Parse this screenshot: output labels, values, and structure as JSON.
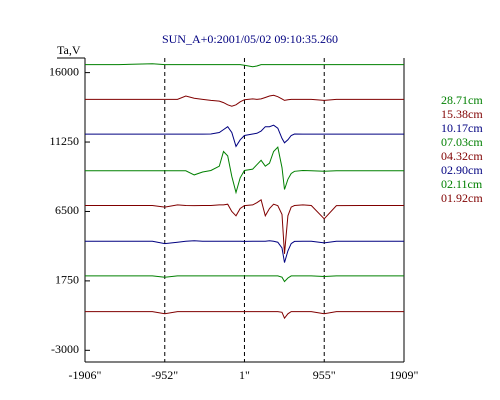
{
  "chart_data": {
    "type": "line",
    "title": "SUN_A+0:2001/05/02 09:10:35.260",
    "ylabel": "Ta,V",
    "x": [
      -1906,
      -1500,
      -1100,
      -952,
      -800,
      -700,
      -600,
      -500,
      -400,
      -300,
      -250,
      -200,
      -150,
      -100,
      -50,
      0,
      100,
      150,
      200,
      250,
      300,
      350,
      400,
      450,
      480,
      520,
      560,
      600,
      700,
      800,
      955,
      1100,
      1400,
      1909
    ],
    "series": [
      {
        "name": "28.71cm",
        "color": "#008000",
        "values": [
          16550,
          16550,
          16600,
          16550,
          16550,
          16550,
          16550,
          16550,
          16550,
          16550,
          16550,
          16550,
          16550,
          16550,
          16550,
          16500,
          16400,
          16450,
          16550,
          16550,
          16550,
          16550,
          16550,
          16550,
          16550,
          16550,
          16550,
          16550,
          16550,
          16550,
          16550,
          16550,
          16550,
          16550
        ]
      },
      {
        "name": "15.38cm",
        "color": "#800000",
        "values": [
          14170,
          14170,
          14170,
          14170,
          14170,
          14400,
          14250,
          14170,
          14100,
          14050,
          13950,
          13800,
          13700,
          13800,
          14000,
          14150,
          14200,
          14170,
          14200,
          14300,
          14400,
          14450,
          14350,
          14200,
          14100,
          14150,
          14170,
          14170,
          14170,
          14170,
          14100,
          14170,
          14170,
          14170
        ]
      },
      {
        "name": "10.17cm",
        "color": "#000080",
        "values": [
          11790,
          11790,
          11790,
          11790,
          11790,
          11790,
          11790,
          11790,
          11800,
          11900,
          12100,
          12300,
          11900,
          10950,
          11400,
          11700,
          11800,
          11850,
          12000,
          12300,
          12300,
          12400,
          12200,
          11500,
          11200,
          11400,
          11700,
          11800,
          11790,
          11790,
          11790,
          11790,
          11790,
          11790
        ]
      },
      {
        "name": "07.03cm",
        "color": "#008000",
        "values": [
          9280,
          9280,
          9280,
          9280,
          9280,
          9280,
          9000,
          9200,
          9300,
          9600,
          10600,
          10300,
          8900,
          7800,
          8800,
          9300,
          9400,
          9700,
          10000,
          9600,
          9800,
          10600,
          10900,
          9500,
          8000,
          8700,
          9100,
          9250,
          9300,
          9280,
          9250,
          9280,
          9280,
          9280
        ]
      },
      {
        "name": "04.32cm",
        "color": "#800000",
        "values": [
          6910,
          6910,
          6910,
          6800,
          6950,
          6910,
          6900,
          6910,
          6910,
          6950,
          6950,
          7000,
          6500,
          6200,
          6700,
          6900,
          6950,
          7100,
          7300,
          6200,
          6700,
          7000,
          6900,
          6300,
          3600,
          6200,
          6800,
          6910,
          6950,
          6910,
          6000,
          6900,
          6910,
          6910
        ]
      },
      {
        "name": "02.90cm",
        "color": "#000080",
        "values": [
          4460,
          4460,
          4460,
          4300,
          4400,
          4460,
          4500,
          4460,
          4460,
          4460,
          4460,
          4460,
          4460,
          4460,
          4460,
          4450,
          4460,
          4460,
          4460,
          4460,
          4500,
          4460,
          4400,
          4000,
          3000,
          3800,
          4300,
          4450,
          4460,
          4460,
          4350,
          4460,
          4460,
          4460
        ]
      },
      {
        "name": "02.11cm",
        "color": "#008000",
        "values": [
          2090,
          2090,
          2090,
          2000,
          2090,
          2090,
          2090,
          2090,
          2090,
          2090,
          2090,
          2090,
          2090,
          2090,
          2090,
          2090,
          2090,
          2090,
          2090,
          2090,
          2090,
          2090,
          2090,
          2000,
          1700,
          1950,
          2090,
          2090,
          2090,
          2090,
          2050,
          2090,
          2090,
          2090
        ]
      },
      {
        "name": "01.92cm",
        "color": "#800000",
        "values": [
          -350,
          -350,
          -350,
          -500,
          -350,
          -350,
          -350,
          -350,
          -350,
          -350,
          -350,
          -350,
          -350,
          -350,
          -350,
          -350,
          -350,
          -350,
          -350,
          -350,
          -350,
          -350,
          -350,
          -400,
          -800,
          -500,
          -350,
          -350,
          -350,
          -350,
          -500,
          -350,
          -350,
          -350
        ]
      }
    ],
    "xlim": [
      -1906,
      1909
    ],
    "xticks": [
      {
        "value": -1906,
        "label": "-1906\""
      },
      {
        "value": -952,
        "label": "-952\""
      },
      {
        "value": 1,
        "label": "1\""
      },
      {
        "value": 955,
        "label": "955\""
      },
      {
        "value": 1909,
        "label": "1909\""
      }
    ],
    "ylim": [
      -3800,
      17000
    ],
    "yticks": [
      16000,
      11250,
      6500,
      1750,
      -3000
    ],
    "grid": "x-dashed"
  }
}
